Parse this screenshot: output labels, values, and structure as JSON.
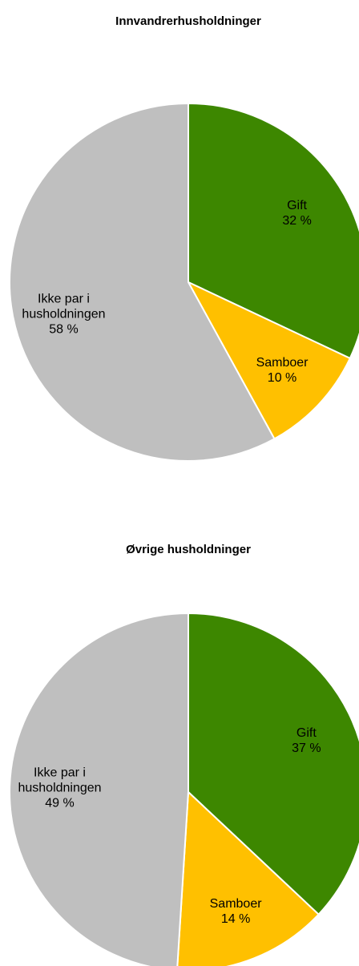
{
  "chart_data": [
    {
      "type": "pie",
      "title": "Innvandrerhusholdninger",
      "categories": [
        "Gift",
        "Samboer",
        "Ikke par i husholdningen"
      ],
      "values": [
        32,
        10,
        58
      ],
      "value_labels": [
        "32 %",
        "10 %",
        "58 %"
      ],
      "colors": [
        "#3d8700",
        "#ffc000",
        "#bfbfbf"
      ]
    },
    {
      "type": "pie",
      "title": "Øvrige husholdninger",
      "categories": [
        "Gift",
        "Samboer",
        "Ikke par i husholdningen"
      ],
      "values": [
        37,
        14,
        49
      ],
      "value_labels": [
        "37 %",
        "14 %",
        "49 %"
      ],
      "colors": [
        "#3d8700",
        "#ffc000",
        "#bfbfbf"
      ]
    }
  ]
}
